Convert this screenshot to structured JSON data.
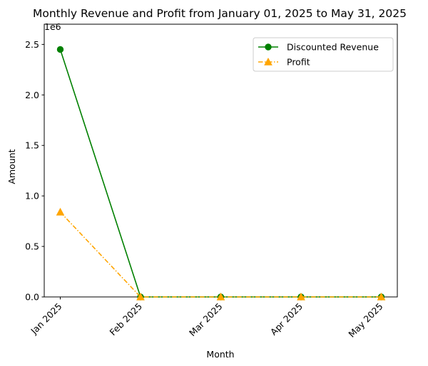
{
  "chart_data": {
    "type": "line",
    "title": "Monthly Revenue and Profit from January 01, 2025 to May 31, 2025",
    "xlabel": "Month",
    "ylabel": "Amount",
    "y_offset_text": "1e6",
    "categories": [
      "Jan 2025",
      "Feb 2025",
      "Mar 2025",
      "Apr 2025",
      "May 2025"
    ],
    "ylim": [
      0,
      2.7
    ],
    "y_ticks": [
      0.0,
      0.5,
      1.0,
      1.5,
      2.0,
      2.5
    ],
    "y_tick_labels": [
      "0.0",
      "0.5",
      "1.0",
      "1.5",
      "2.0",
      "2.5"
    ],
    "grid": false,
    "legend_position": "top-right",
    "series": [
      {
        "name": "Discounted Revenue",
        "values": [
          2.45,
          0.0,
          0.0,
          0.0,
          0.0
        ],
        "color": "#008000",
        "linestyle": "solid",
        "marker": "circle"
      },
      {
        "name": "Profit",
        "values": [
          0.84,
          0.0,
          0.0,
          0.0,
          0.0
        ],
        "color": "#ffa500",
        "linestyle": "dashdot",
        "marker": "triangle"
      }
    ]
  }
}
